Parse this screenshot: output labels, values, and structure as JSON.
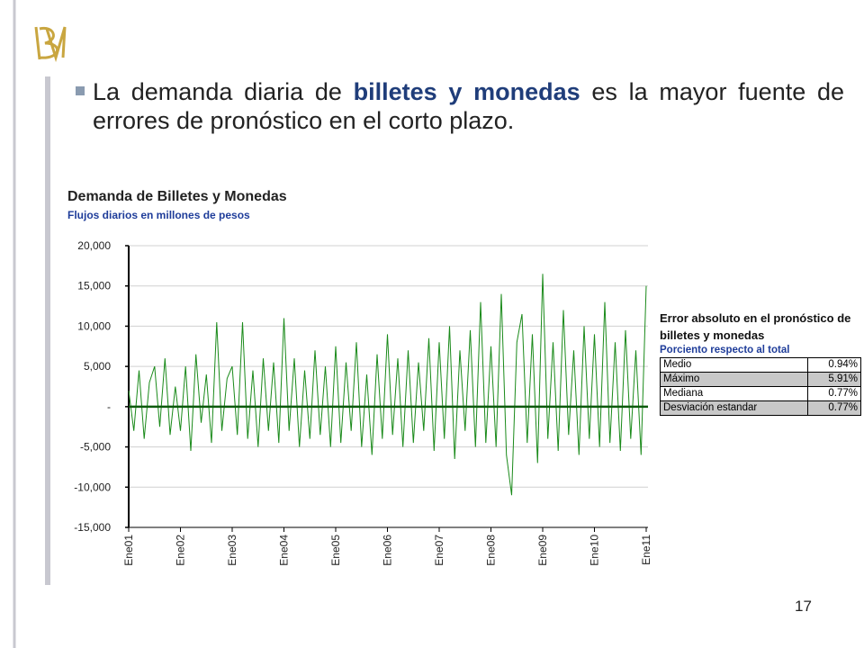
{
  "bullet": {
    "before": "La demanda diaria de ",
    "highlight": "billetes y monedas",
    "after": " es la mayor fuente de errores de pronóstico en el corto plazo."
  },
  "chart_data": {
    "type": "line",
    "title": "Demanda de Billetes y Monedas",
    "subtitle": "Flujos diarios en millones de pesos",
    "x": [
      2001.0,
      2001.1,
      2001.2,
      2001.3,
      2001.4,
      2001.5,
      2001.6,
      2001.7,
      2001.8,
      2001.9,
      2002.0,
      2002.1,
      2002.2,
      2002.3,
      2002.4,
      2002.5,
      2002.6,
      2002.7,
      2002.8,
      2002.9,
      2003.0,
      2003.1,
      2003.2,
      2003.3,
      2003.4,
      2003.5,
      2003.6,
      2003.7,
      2003.8,
      2003.9,
      2004.0,
      2004.1,
      2004.2,
      2004.3,
      2004.4,
      2004.5,
      2004.6,
      2004.7,
      2004.8,
      2004.9,
      2005.0,
      2005.1,
      2005.2,
      2005.3,
      2005.4,
      2005.5,
      2005.6,
      2005.7,
      2005.8,
      2005.9,
      2006.0,
      2006.1,
      2006.2,
      2006.3,
      2006.4,
      2006.5,
      2006.6,
      2006.7,
      2006.8,
      2006.9,
      2007.0,
      2007.1,
      2007.2,
      2007.3,
      2007.4,
      2007.5,
      2007.6,
      2007.7,
      2007.8,
      2007.9,
      2008.0,
      2008.1,
      2008.2,
      2008.3,
      2008.4,
      2008.5,
      2008.6,
      2008.7,
      2008.8,
      2008.9,
      2009.0,
      2009.1,
      2009.2,
      2009.3,
      2009.4,
      2009.5,
      2009.6,
      2009.7,
      2009.8,
      2009.9,
      2010.0,
      2010.1,
      2010.2,
      2010.3,
      2010.4,
      2010.5,
      2010.6,
      2010.7,
      2010.8,
      2010.9,
      2011.0
    ],
    "series": [
      {
        "color": "#1a8a1a",
        "values": [
          2000,
          -3000,
          4500,
          -4000,
          3000,
          5000,
          -2500,
          6000,
          -3500,
          2500,
          -3000,
          5000,
          -5500,
          6500,
          -2000,
          4000,
          -4500,
          10500,
          -3000,
          3500,
          5000,
          -3500,
          10500,
          -4000,
          4500,
          -5000,
          6000,
          -3000,
          5500,
          -4500,
          11000,
          -3000,
          6000,
          -5000,
          4500,
          -4000,
          7000,
          -3500,
          5000,
          -5000,
          7500,
          -4500,
          5500,
          -3000,
          8000,
          -5000,
          4000,
          -6000,
          6500,
          -4000,
          9000,
          -3500,
          6000,
          -5000,
          7000,
          -4500,
          5500,
          -3000,
          8500,
          -5500,
          8000,
          -4000,
          10000,
          -6500,
          7000,
          -3000,
          9500,
          -5000,
          13000,
          -4500,
          7500,
          -5000,
          14000,
          -6000,
          -11000,
          8000,
          11500,
          -4500,
          9000,
          -7000,
          16500,
          -4000,
          8000,
          -5500,
          12000,
          -3500,
          7000,
          -6000,
          10000,
          -4000,
          9000,
          -5000,
          13000,
          -4500,
          8000,
          -5500,
          9500,
          -4000,
          7000,
          -6000,
          15000
        ]
      }
    ],
    "xlim": [
      2001,
      2011
    ],
    "xticks": [
      {
        "value": 2001,
        "label": "Ene01"
      },
      {
        "value": 2002,
        "label": "Ene02"
      },
      {
        "value": 2003,
        "label": "Ene03"
      },
      {
        "value": 2004,
        "label": "Ene04"
      },
      {
        "value": 2005,
        "label": "Ene05"
      },
      {
        "value": 2006,
        "label": "Ene06"
      },
      {
        "value": 2007,
        "label": "Ene07"
      },
      {
        "value": 2008,
        "label": "Ene08"
      },
      {
        "value": 2009,
        "label": "Ene09"
      },
      {
        "value": 2010,
        "label": "Ene10"
      },
      {
        "value": 2011,
        "label": "Ene11"
      }
    ],
    "ylim": [
      -15000,
      20000
    ],
    "yticks": [
      {
        "value": -15000,
        "label": "-15,000"
      },
      {
        "value": -10000,
        "label": "-10,000"
      },
      {
        "value": -5000,
        "label": "-5,000"
      },
      {
        "value": 0,
        "label": "-"
      },
      {
        "value": 5000,
        "label": "5,000"
      },
      {
        "value": 10000,
        "label": "10,000"
      },
      {
        "value": 15000,
        "label": "15,000"
      },
      {
        "value": 20000,
        "label": "20,000"
      }
    ],
    "grid": true
  },
  "table": {
    "title": "Error absoluto en el pronóstico de billetes y monedas",
    "subtitle": "Porciento respecto al total",
    "rows": [
      [
        "Medio",
        "0.94%"
      ],
      [
        "Máximo",
        "5.91%"
      ],
      [
        "Mediana",
        "0.77%"
      ],
      [
        "Desviación estandar",
        "0.77%"
      ]
    ]
  },
  "page_number": "17"
}
